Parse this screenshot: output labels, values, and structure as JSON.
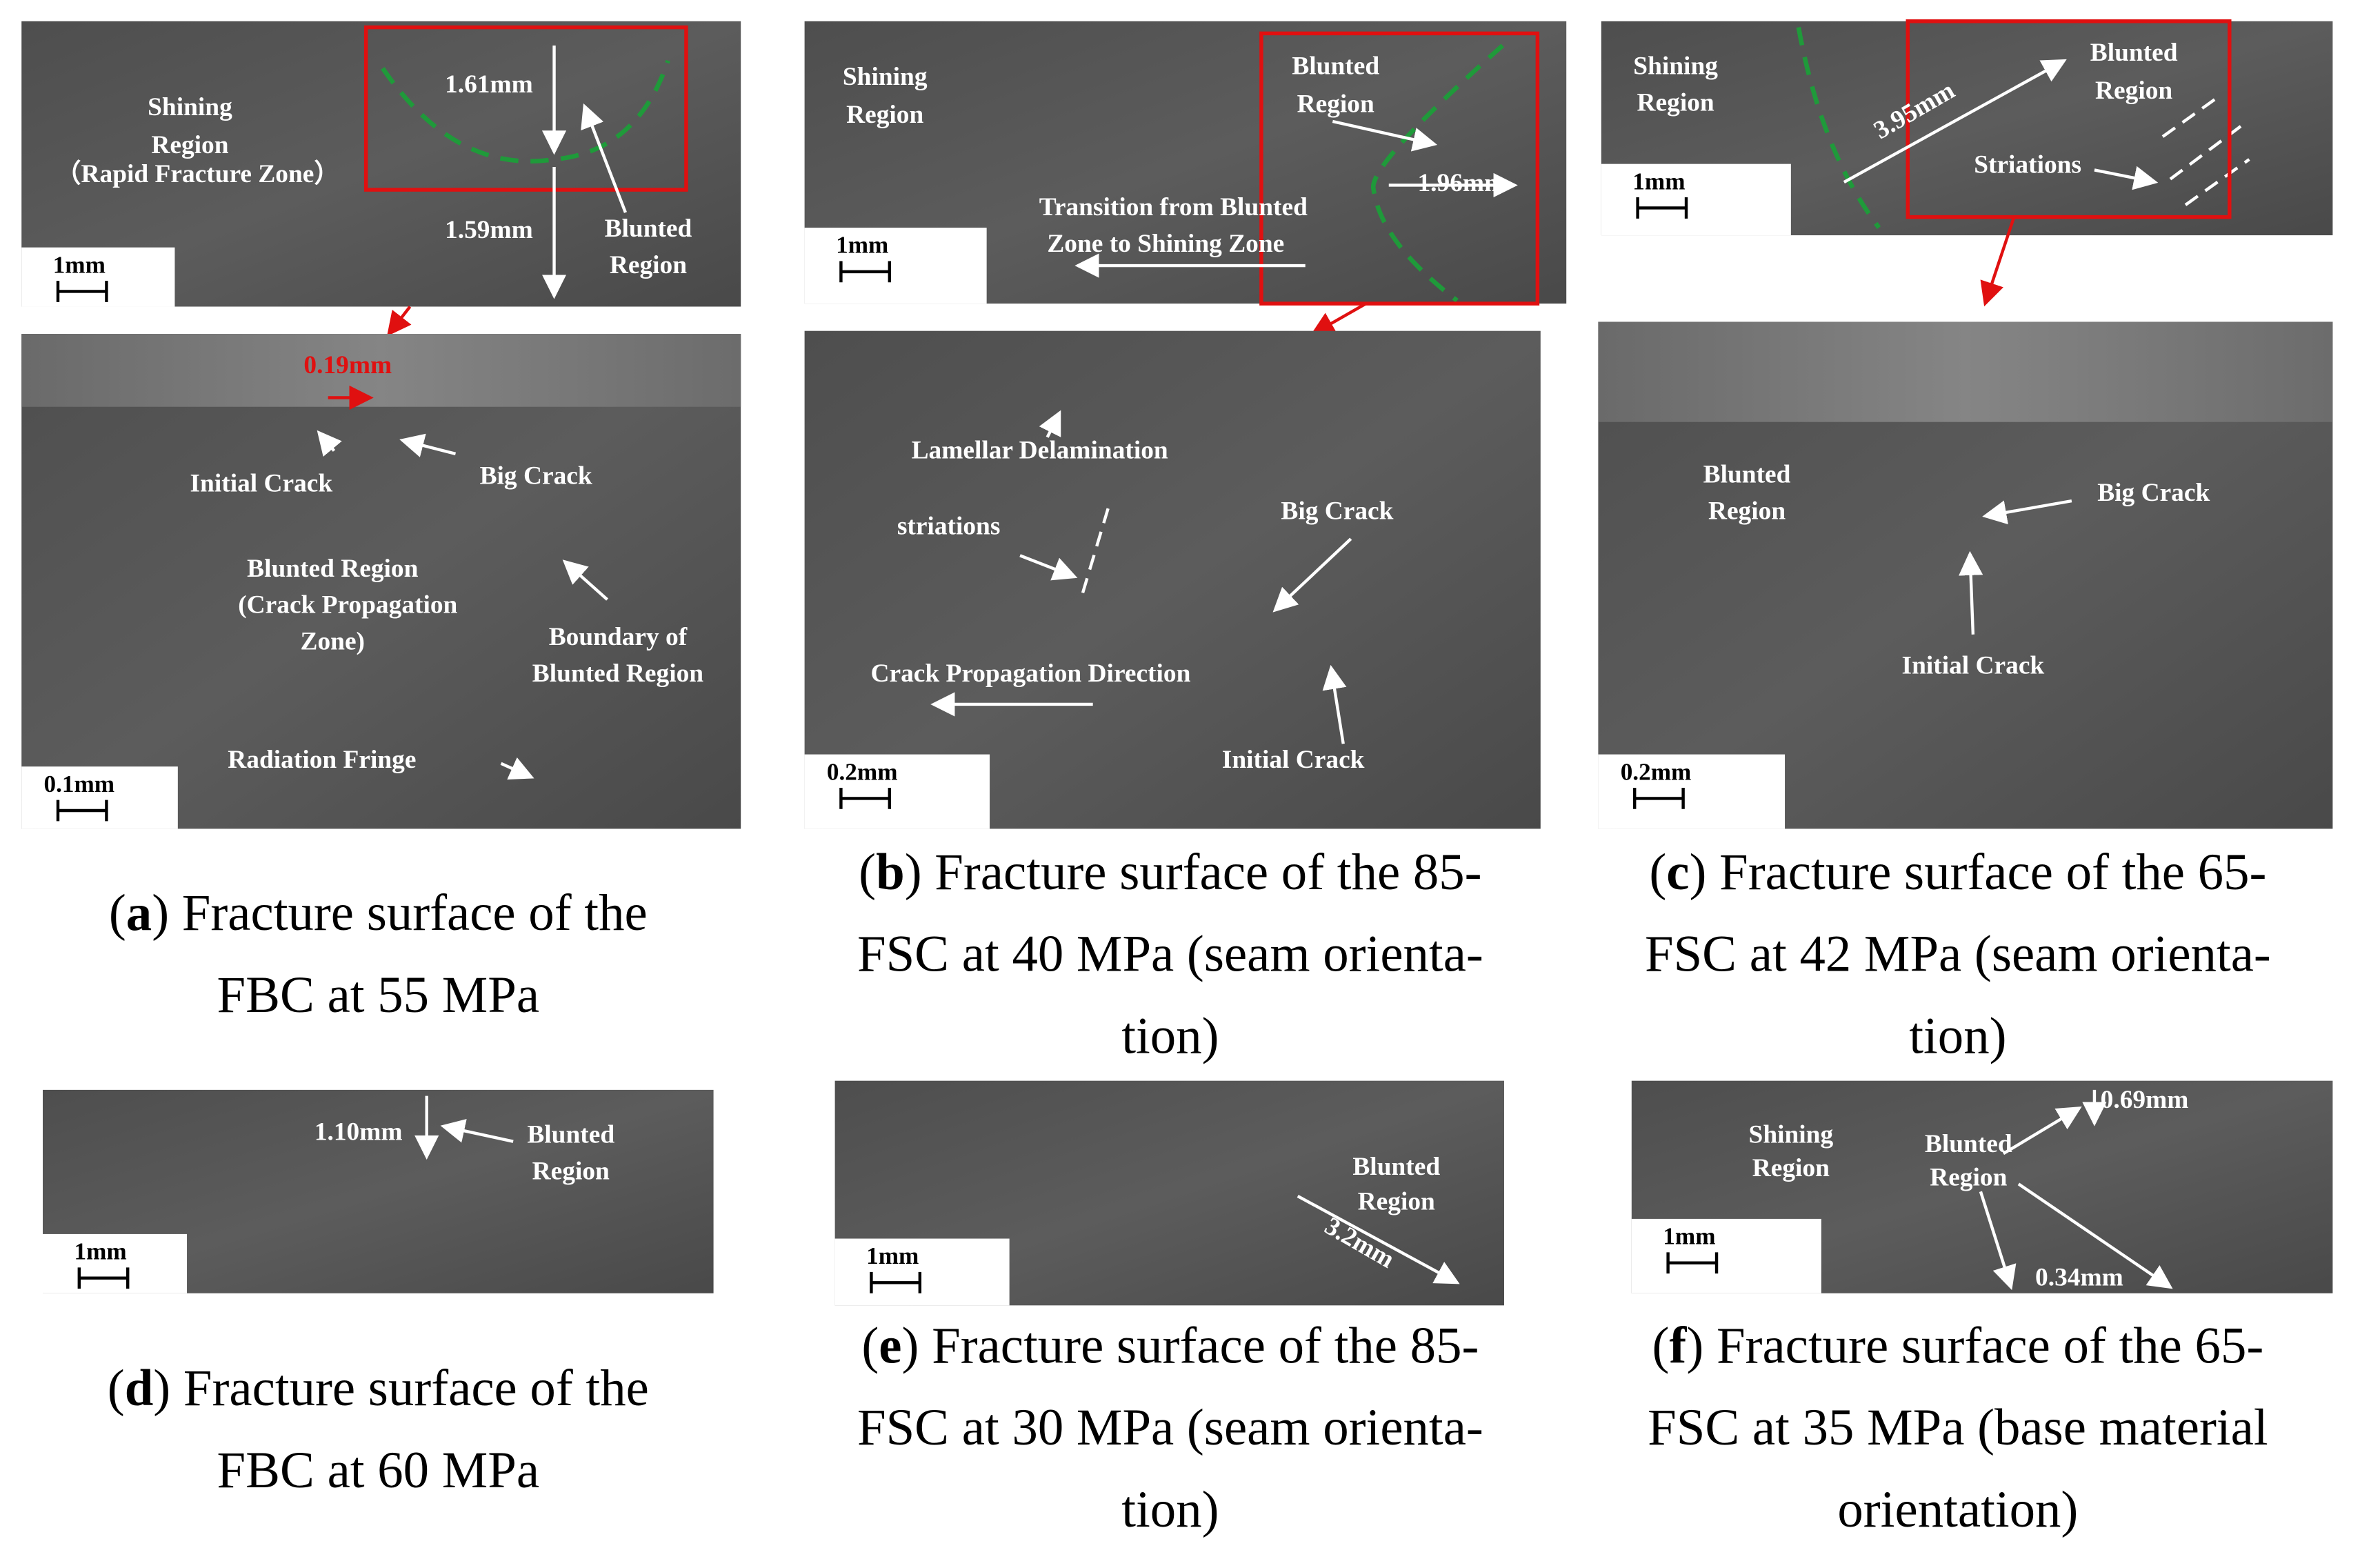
{
  "panels": [
    {
      "id": "a",
      "images": [
        {
          "labels": [
            "Shining",
            "Region",
            "（Rapid Fracture Zone）",
            "1.61mm",
            "1.59mm",
            "Blunted",
            "Region"
          ],
          "scale": "1mm"
        },
        {
          "labels": [
            "0.19mm",
            "Initial Crack",
            "Big Crack",
            "Blunted Region",
            "(Crack Propagation",
            "Zone)",
            "Boundary of",
            "Blunted Region",
            "Radiation Fringe"
          ],
          "scale": "0.1mm"
        }
      ],
      "caption": [
        [
          "(",
          "a",
          ") Fracture surface of the"
        ],
        [
          "FBC at 55 MPa"
        ]
      ]
    },
    {
      "id": "b",
      "images": [
        {
          "labels": [
            "Shining",
            "Region",
            "Blunted",
            "Region",
            "1.96mm",
            "Transition from Blunted",
            "Zone to Shining Zone"
          ],
          "scale": "1mm"
        },
        {
          "labels": [
            "Lamellar Delamination",
            "striations",
            "Big Crack",
            "Crack Propagation Direction",
            "Initial Crack"
          ],
          "scale": "0.2mm"
        }
      ],
      "caption": [
        [
          "(",
          "b",
          ") Fracture surface of the 85-"
        ],
        [
          "FSC at 40 MPa (seam orienta-"
        ],
        [
          "tion)"
        ]
      ]
    },
    {
      "id": "c",
      "images": [
        {
          "labels": [
            "Shining",
            "Region",
            "3.95mm",
            "Blunted",
            "Region",
            "Striations"
          ],
          "scale": "1mm"
        },
        {
          "labels": [
            "Blunted",
            "Region",
            "Big Crack",
            "Initial Crack"
          ],
          "scale": "0.2mm"
        }
      ],
      "caption": [
        [
          "(",
          "c",
          ") Fracture surface of the 65-"
        ],
        [
          "FSC at 42 MPa (seam orienta-"
        ],
        [
          "tion)"
        ]
      ]
    },
    {
      "id": "d",
      "images": [
        {
          "labels": [
            "1.10mm",
            "Blunted",
            "Region"
          ],
          "scale": "1mm"
        }
      ],
      "caption": [
        [
          "(",
          "d",
          ") Fracture surface of the"
        ],
        [
          "FBC at 60 MPa"
        ]
      ]
    },
    {
      "id": "e",
      "images": [
        {
          "labels": [
            "Blunted",
            "Region",
            "3.2mm"
          ],
          "scale": "1mm"
        }
      ],
      "caption": [
        [
          "(",
          "e",
          ") Fracture surface of the 85-"
        ],
        [
          "FSC at 30 MPa (seam orienta-"
        ],
        [
          "tion)"
        ]
      ]
    },
    {
      "id": "f",
      "images": [
        {
          "labels": [
            "Shining",
            "Region",
            "Blunted",
            "Region",
            "0.69mm",
            "0.34mm"
          ],
          "scale": "1mm"
        }
      ],
      "caption": [
        [
          "(",
          "f",
          ") Fracture surface of the 65-"
        ],
        [
          "FSC at 35 MPa (base material"
        ],
        [
          "orientation)"
        ]
      ]
    }
  ]
}
